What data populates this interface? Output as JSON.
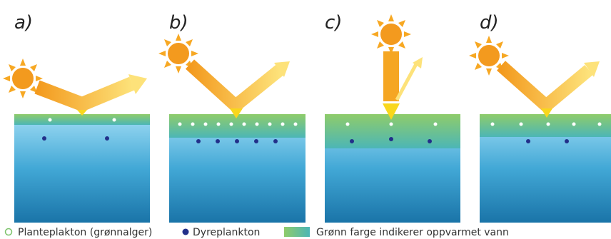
{
  "panels": [
    {
      "label": "a)"
    },
    {
      "label": "b)"
    },
    {
      "label": "c)"
    },
    {
      "label": "d)"
    }
  ],
  "legend": {
    "items": [
      {
        "label": "Planteplakton (grønnalger)"
      },
      {
        "label": "Dyreplankton"
      },
      {
        "label": "Grønn farge indikerer oppvarmet vann"
      }
    ]
  }
}
